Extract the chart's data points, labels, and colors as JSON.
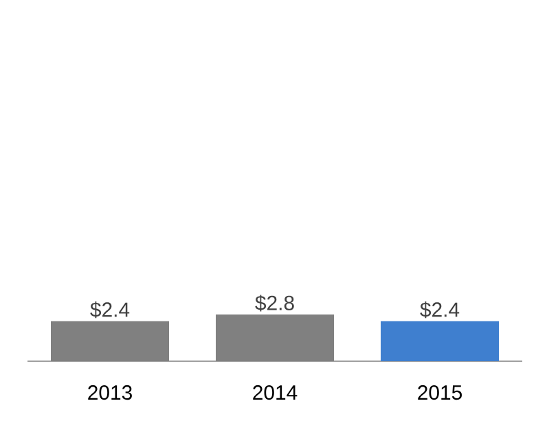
{
  "chart_data": {
    "type": "bar",
    "categories": [
      "2013",
      "2014",
      "2015"
    ],
    "values": [
      2.4,
      2.8,
      2.4
    ],
    "colors": [
      "#808080",
      "#808080",
      "#3f7fcf"
    ],
    "value_labels": [
      "$2.4",
      "$2.8",
      "$2.4"
    ],
    "tick_labels": "x"
  }
}
